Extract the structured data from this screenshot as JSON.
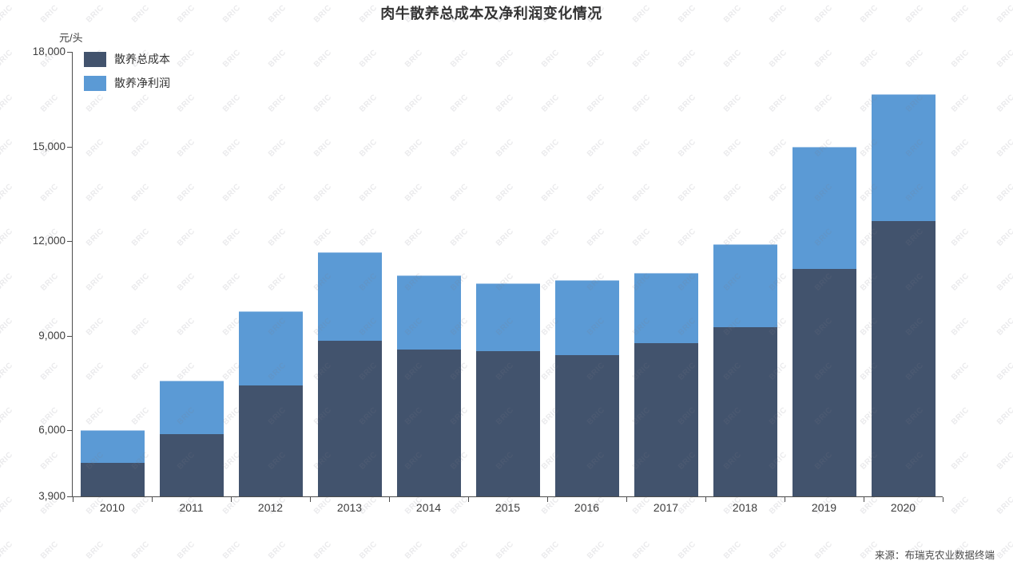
{
  "title": "肉牛散养总成本及净利润变化情况",
  "y_axis_unit": "元/头",
  "watermark": "BRIC",
  "source": "来源：布瑞克农业数据终端",
  "legend": [
    {
      "label": "散养总成本",
      "color": "#42536D"
    },
    {
      "label": "散养净利润",
      "color": "#5B9AD5"
    }
  ],
  "chart_data": {
    "type": "bar",
    "stacked": true,
    "title": "肉牛散养总成本及净利润变化情况",
    "ylabel": "元/头",
    "xlabel": "",
    "grid": false,
    "legend_position": "top-left",
    "categories": [
      "2010",
      "2011",
      "2012",
      "2013",
      "2014",
      "2015",
      "2016",
      "2017",
      "2018",
      "2019",
      "2020"
    ],
    "series": [
      {
        "name": "散养总成本",
        "color": "#42536D",
        "values": [
          4960,
          5870,
          7430,
          8840,
          8570,
          8520,
          8380,
          8760,
          9270,
          11120,
          12640
        ]
      },
      {
        "name": "散养净利润",
        "color": "#5B9AD5",
        "values": [
          1040,
          1690,
          2340,
          2810,
          2350,
          2130,
          2370,
          2240,
          2630,
          3880,
          4010
        ]
      }
    ],
    "stacked_totals": [
      6000,
      7560,
      9770,
      11650,
      10920,
      10650,
      10750,
      11000,
      11900,
      15000,
      16650
    ],
    "ylim": [
      3900,
      18000
    ],
    "y_ticks": [
      3900,
      6000,
      9000,
      12000,
      15000,
      18000
    ]
  }
}
